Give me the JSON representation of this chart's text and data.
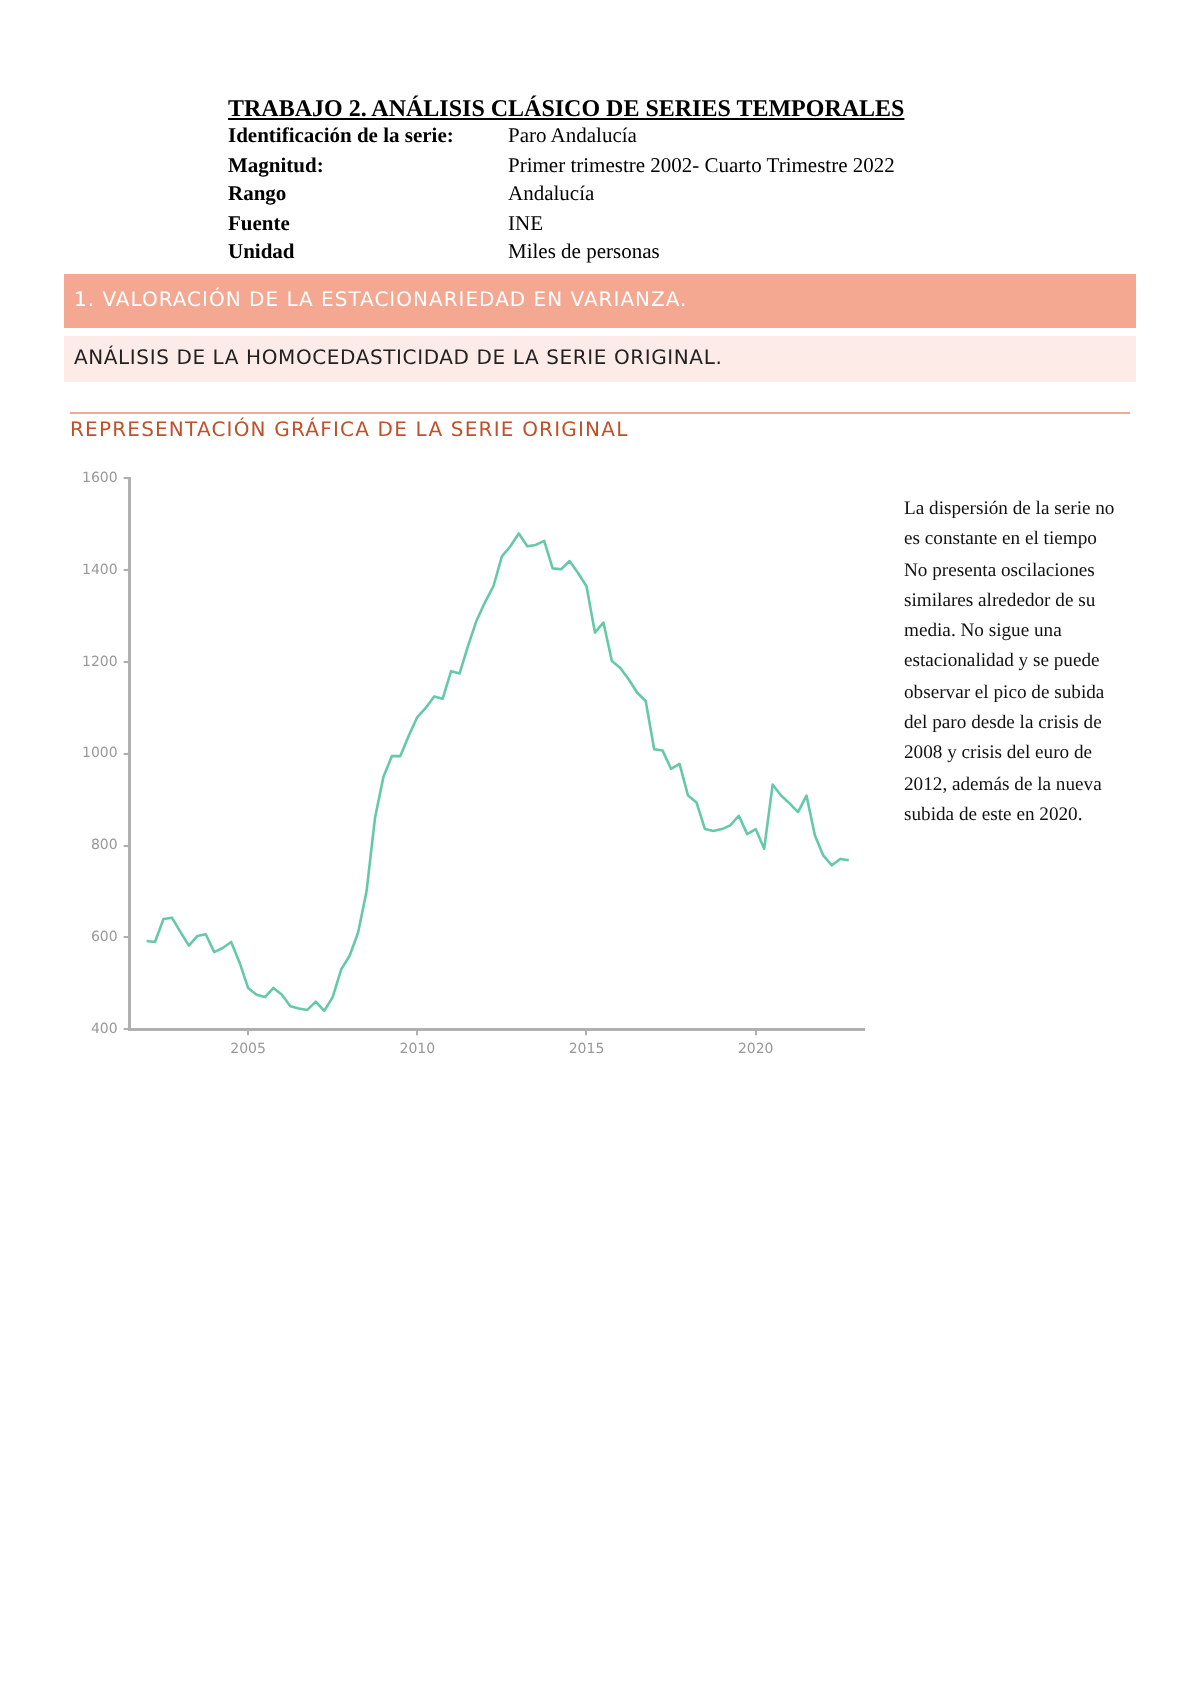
{
  "chart_data": {
    "type": "line",
    "title": "TRABAJO 2. ANÁLISIS CLÁSICO DE SERIES TEMPORALES",
    "annotations": [
      "Identificación de la serie:",
      "Paro Andalucía",
      "Magnitud:",
      "Primer trimestre 2002- Cuarto Trimestre 2022",
      "Rango",
      "Andalucía",
      "Fuente",
      "INE",
      "Unidad",
      "Miles de personas",
      "1.  VALORACIÓN DE LA ESTACIONARIEDAD EN VARIANZA.",
      "ANÁLISIS DE LA HOMOCEDASTICIDAD DE LA SERIE ORIGINAL.",
      "REPRESENTACIÓN GRÁFICA DE LA SERIE ORIGINAL",
      "La dispersión de la serie no es constante en el tiempo\nNo presenta oscilaciones similares alrededor de su media. No sigue una estacionalidad y se puede observar el pico de subida del paro desde la crisis de 2008 y crisis del euro de 2012, además de la nueva subida de este en 2020."
    ],
    "x": [
      2002,
      2002.25,
      2002.5,
      2002.75,
      2003,
      2003.25,
      2003.5,
      2003.75,
      2004,
      2004.25,
      2004.5,
      2004.75,
      2005,
      2005.25,
      2005.5,
      2005.75,
      2006,
      2006.25,
      2006.5,
      2006.75,
      2007,
      2007.25,
      2007.5,
      2007.75,
      2008,
      2008.25,
      2008.5,
      2008.75,
      2009,
      2009.25,
      2009.5,
      2009.75,
      2010,
      2010.25,
      2010.5,
      2010.75,
      2011,
      2011.25,
      2011.5,
      2011.75,
      2012,
      2012.25,
      2012.5,
      2012.75,
      2013,
      2013.25,
      2013.5,
      2013.75,
      2014,
      2014.25,
      2014.5,
      2014.75,
      2015,
      2015.25,
      2015.5,
      2015.75,
      2016,
      2016.25,
      2016.5,
      2016.75,
      2017,
      2017.25,
      2017.5,
      2017.75,
      2018,
      2018.25,
      2018.5,
      2018.75,
      2019,
      2019.25,
      2019.5,
      2019.75,
      2020,
      2020.25,
      2020.5,
      2020.75,
      2021,
      2021.25,
      2021.5,
      2021.75,
      2022,
      2022.25,
      2022.5,
      2022.75
    ],
    "series": [
      {
        "color": "#66c9a6",
        "values": [
          592,
          590,
          640,
          643,
          612,
          582,
          603,
          607,
          568,
          577,
          590,
          545,
          490,
          475,
          470,
          490,
          475,
          450,
          445,
          442,
          460,
          440,
          470,
          530,
          560,
          610,
          700,
          860,
          950,
          995,
          995,
          1040,
          1080,
          1100,
          1125,
          1120,
          1180,
          1175,
          1235,
          1290,
          1330,
          1365,
          1430,
          1452,
          1480,
          1452,
          1455,
          1464,
          1404,
          1402,
          1420,
          1394,
          1365,
          1264,
          1286,
          1202,
          1187,
          1162,
          1133,
          1115,
          1010,
          1007,
          967,
          978,
          909,
          894,
          836,
          832,
          836,
          844,
          865,
          825,
          836,
          793,
          933,
          909,
          892,
          873,
          909,
          822,
          778,
          757,
          771,
          768
        ]
      }
    ],
    "xlim": [
      2001.5,
      2023.2
    ],
    "xticks": [
      2005,
      2010,
      2015,
      2020
    ],
    "ylim": [
      400,
      1600
    ],
    "yticks": [
      400,
      600,
      800,
      1000,
      1200,
      1400,
      1600
    ],
    "grid": false,
    "legend": false,
    "marker": "none",
    "line_style": "solid"
  }
}
